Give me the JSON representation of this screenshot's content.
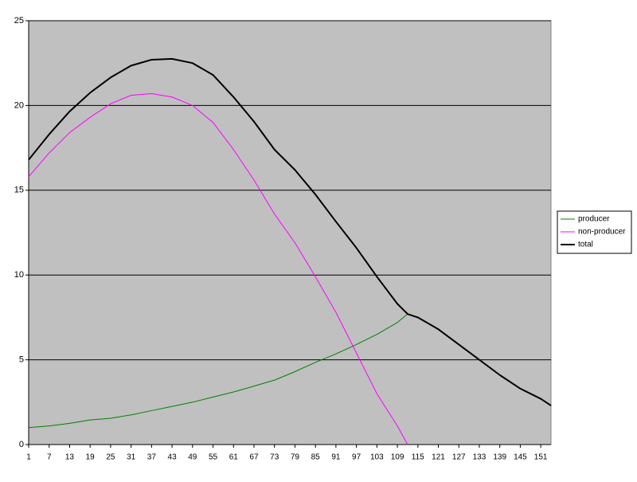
{
  "chart_data": {
    "type": "line",
    "x": [
      1,
      7,
      13,
      19,
      25,
      31,
      37,
      43,
      49,
      55,
      61,
      67,
      73,
      79,
      85,
      91,
      97,
      103,
      109,
      112,
      115,
      121,
      127,
      133,
      139,
      145,
      151,
      154
    ],
    "series": [
      {
        "name": "producer",
        "color": "#008000",
        "values": [
          1.0,
          1.1,
          1.25,
          1.45,
          1.55,
          1.75,
          2.0,
          2.25,
          2.5,
          2.8,
          3.1,
          3.45,
          3.8,
          4.3,
          4.85,
          5.35,
          5.9,
          6.5,
          7.2,
          7.7,
          null,
          null,
          null,
          null,
          null,
          null,
          null,
          null
        ]
      },
      {
        "name": "non-producer",
        "color": "#ff00ff",
        "values": [
          15.8,
          17.2,
          18.4,
          19.3,
          20.1,
          20.6,
          20.7,
          20.5,
          20.0,
          19.0,
          17.4,
          15.6,
          13.6,
          11.9,
          9.9,
          7.8,
          5.4,
          3.0,
          1.1,
          0,
          null,
          null,
          null,
          null,
          null,
          null,
          null,
          null
        ]
      },
      {
        "name": "total",
        "color": "#000000",
        "values": [
          16.8,
          18.3,
          19.65,
          20.75,
          21.65,
          22.35,
          22.7,
          22.75,
          22.5,
          21.8,
          20.5,
          19.05,
          17.4,
          16.2,
          14.75,
          13.15,
          11.6,
          9.9,
          8.3,
          7.7,
          7.5,
          6.8,
          5.9,
          5.0,
          4.1,
          3.3,
          2.7,
          2.3
        ]
      }
    ],
    "xlim": [
      1,
      154
    ],
    "xticks": [
      1,
      7,
      13,
      19,
      25,
      31,
      37,
      43,
      49,
      55,
      61,
      67,
      73,
      79,
      85,
      91,
      97,
      103,
      109,
      115,
      121,
      127,
      133,
      139,
      145,
      151
    ],
    "ylim": [
      0,
      25
    ],
    "yticks": [
      0,
      5,
      10,
      15,
      20,
      25
    ],
    "grid": true,
    "legend": "right"
  }
}
